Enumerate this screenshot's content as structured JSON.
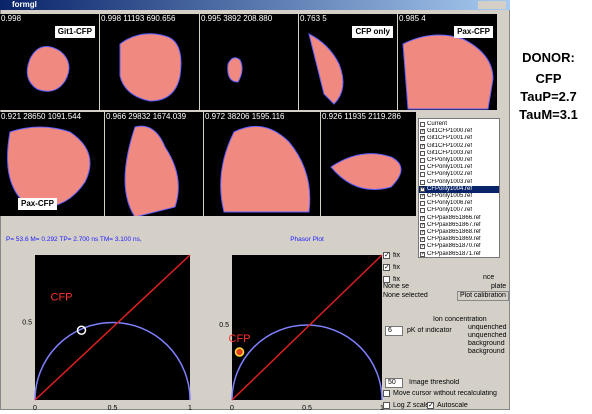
{
  "window": {
    "title": "formgl"
  },
  "tiles": [
    {
      "header": "0.998",
      "label": "Git1-CFP"
    },
    {
      "header": "0.998 11193 690.656",
      "label": null
    },
    {
      "header": "0.995 3892 208.880",
      "label": null
    },
    {
      "header": "0.763 5",
      "label": "CFP only"
    },
    {
      "header": "0.985 4",
      "label": "Pax-CFP"
    },
    {
      "header": "0.921 28650 1091.544",
      "label": "Pax-CFP"
    },
    {
      "header": "0.966 29832 1674.039",
      "label": null
    },
    {
      "header": "0.972 38206 1595.116",
      "label": null
    },
    {
      "header": "0.926 11935 2119.286",
      "label": null
    }
  ],
  "donor": {
    "lines": [
      "DONOR:",
      "CFP",
      "TauP=2.7",
      "TauM=3.1"
    ]
  },
  "file_list": {
    "items": [
      {
        "text": "Current",
        "checked": false,
        "selected": false
      },
      {
        "text": "Git1CFP1000.ref",
        "checked": true,
        "selected": false
      },
      {
        "text": "Git1CFP1001.ref",
        "checked": true,
        "selected": false
      },
      {
        "text": "Git1CFP1002.ref",
        "checked": true,
        "selected": false
      },
      {
        "text": "Git1CFP1003.ref",
        "checked": false,
        "selected": false
      },
      {
        "text": "CFPonly1000.ref",
        "checked": false,
        "selected": false
      },
      {
        "text": "CFPonly1001.ref",
        "checked": false,
        "selected": false
      },
      {
        "text": "CFPonly1002.ref",
        "checked": false,
        "selected": false
      },
      {
        "text": "CFPonly1003.ref",
        "checked": false,
        "selected": false
      },
      {
        "text": "CFPonly1004.ref",
        "checked": true,
        "selected": true
      },
      {
        "text": "CFPonly1005.ref",
        "checked": true,
        "selected": false
      },
      {
        "text": "CFPonly1006.ref",
        "checked": false,
        "selected": false
      },
      {
        "text": "CFPonly1007.ref",
        "checked": false,
        "selected": false
      },
      {
        "text": "CFPpax8651866.ref",
        "checked": true,
        "selected": false
      },
      {
        "text": "CFPpax8651867.ref",
        "checked": true,
        "selected": false
      },
      {
        "text": "CFPpax8651868.ref",
        "checked": true,
        "selected": false
      },
      {
        "text": "CFPpax8651869.ref",
        "checked": true,
        "selected": false
      },
      {
        "text": "CFPpax8651870.ref",
        "checked": true,
        "selected": false
      },
      {
        "text": "CFPpax8651871.ref",
        "checked": true,
        "selected": false
      }
    ]
  },
  "plots": [
    {
      "header": "P= 53.6 M= 0.292 TP= 2.700 ns TM= 3.100 ns,",
      "marker_label": "CFP",
      "x_ticks": [
        "0",
        "0.5",
        "1"
      ],
      "y_ticks": [
        "0.5"
      ]
    },
    {
      "header": "Phasor Plot",
      "marker_label": "CFP",
      "x_ticks": [
        "0",
        "0.5",
        "1"
      ],
      "y_ticks": [
        "0.5"
      ]
    }
  ],
  "controls": {
    "fix": [
      {
        "text": "fix",
        "checked": true
      },
      {
        "text": "fix",
        "checked": true
      },
      {
        "text": "fix",
        "checked": false
      }
    ],
    "nce": "nce",
    "none_se": "None se",
    "plate": "plate",
    "none_selected": "None selected",
    "plot_calibration": "Plot calibration",
    "ion_concentration": "Ion concentration",
    "pk_value": "6",
    "pk_label": "pK of indicator",
    "ion_lines": [
      "unquenched",
      "unquenched",
      "background",
      "background"
    ],
    "threshold_value": "50",
    "threshold_label": "Image threshold",
    "move_cursor": {
      "text": "Move cursor without recalculating",
      "checked": false
    },
    "log_z": {
      "text": "Log Z scale",
      "checked": false
    },
    "autoscale": {
      "text": "Autoscale",
      "checked": true
    }
  }
}
